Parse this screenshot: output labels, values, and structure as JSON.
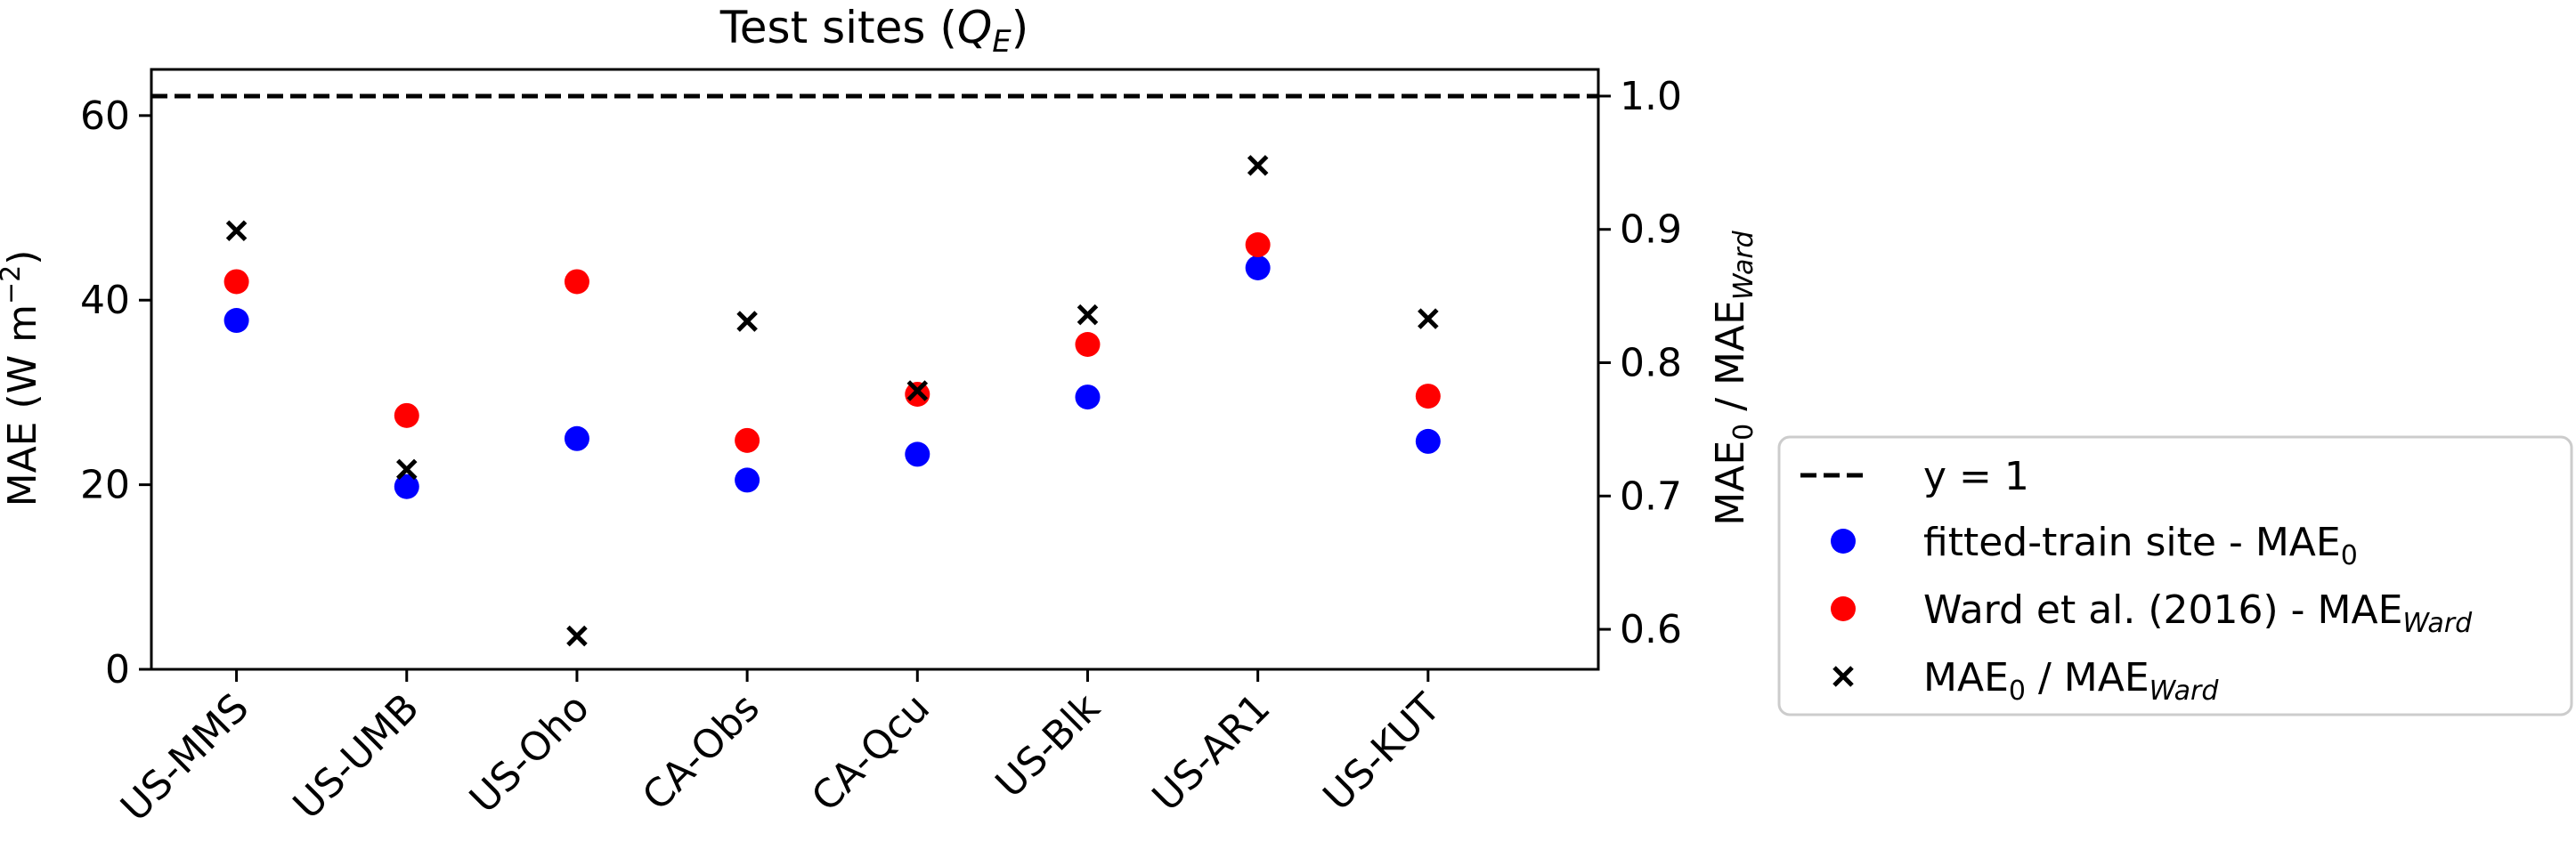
{
  "chart_data": {
    "type": "scatter",
    "title": "Test sites (",
    "title_math": "Q",
    "title_sub": "E",
    "title_close": ")",
    "categories": [
      "US-MMS",
      "US-UMB",
      "US-Oho",
      "CA-Obs",
      "CA-Qcu",
      "US-Blk",
      "US-AR1",
      "US-KUT"
    ],
    "left_axis": {
      "label_main": "MAE (W m",
      "label_sup": "−2",
      "label_close": ")",
      "ylim": [
        0,
        65
      ],
      "ticks": [
        0,
        20,
        40,
        60
      ],
      "tick_labels": [
        "0",
        "20",
        "40",
        "60"
      ]
    },
    "right_axis": {
      "label_a": "MAE",
      "label_a_sub": "0",
      "label_sep": " / MAE",
      "label_b_sub": "Ward",
      "ylim": [
        0.57,
        1.02
      ],
      "ticks": [
        0.6,
        0.7,
        0.8,
        0.9,
        1.0
      ],
      "tick_labels": [
        "0.6",
        "0.7",
        "0.8",
        "0.9",
        "1.0"
      ]
    },
    "reference_line": {
      "y": 1.0,
      "axis": "right",
      "style": "dashed",
      "color": "#000000"
    },
    "series": [
      {
        "axis": "left",
        "marker": "circle",
        "color": "#0000ff",
        "values": [
          37.8,
          19.8,
          25.0,
          20.5,
          23.3,
          29.5,
          43.5,
          24.7
        ]
      },
      {
        "axis": "left",
        "marker": "circle",
        "color": "#ff0000",
        "values": [
          42.0,
          27.5,
          42.0,
          24.8,
          29.8,
          35.2,
          46.0,
          29.6
        ]
      },
      {
        "axis": "right",
        "marker": "x",
        "color": "#000000",
        "values": [
          0.899,
          0.72,
          0.595,
          0.831,
          0.779,
          0.836,
          0.948,
          0.833
        ]
      }
    ],
    "legend": {
      "placement": "right",
      "entries": [
        {
          "label": "y = 1",
          "label_sub": "",
          "label_tail": "",
          "label_tail_sub": ""
        },
        {
          "label": "fitted-train site - MAE",
          "label_sub": "0",
          "label_tail": "",
          "label_tail_sub": ""
        },
        {
          "label": "Ward et al. (2016) - MAE",
          "label_sub": "Ward",
          "label_tail": "",
          "label_tail_sub": ""
        },
        {
          "label": "MAE",
          "label_sub": "0",
          "label_tail": " / MAE",
          "label_tail_sub": "Ward"
        }
      ]
    },
    "grid": false
  }
}
